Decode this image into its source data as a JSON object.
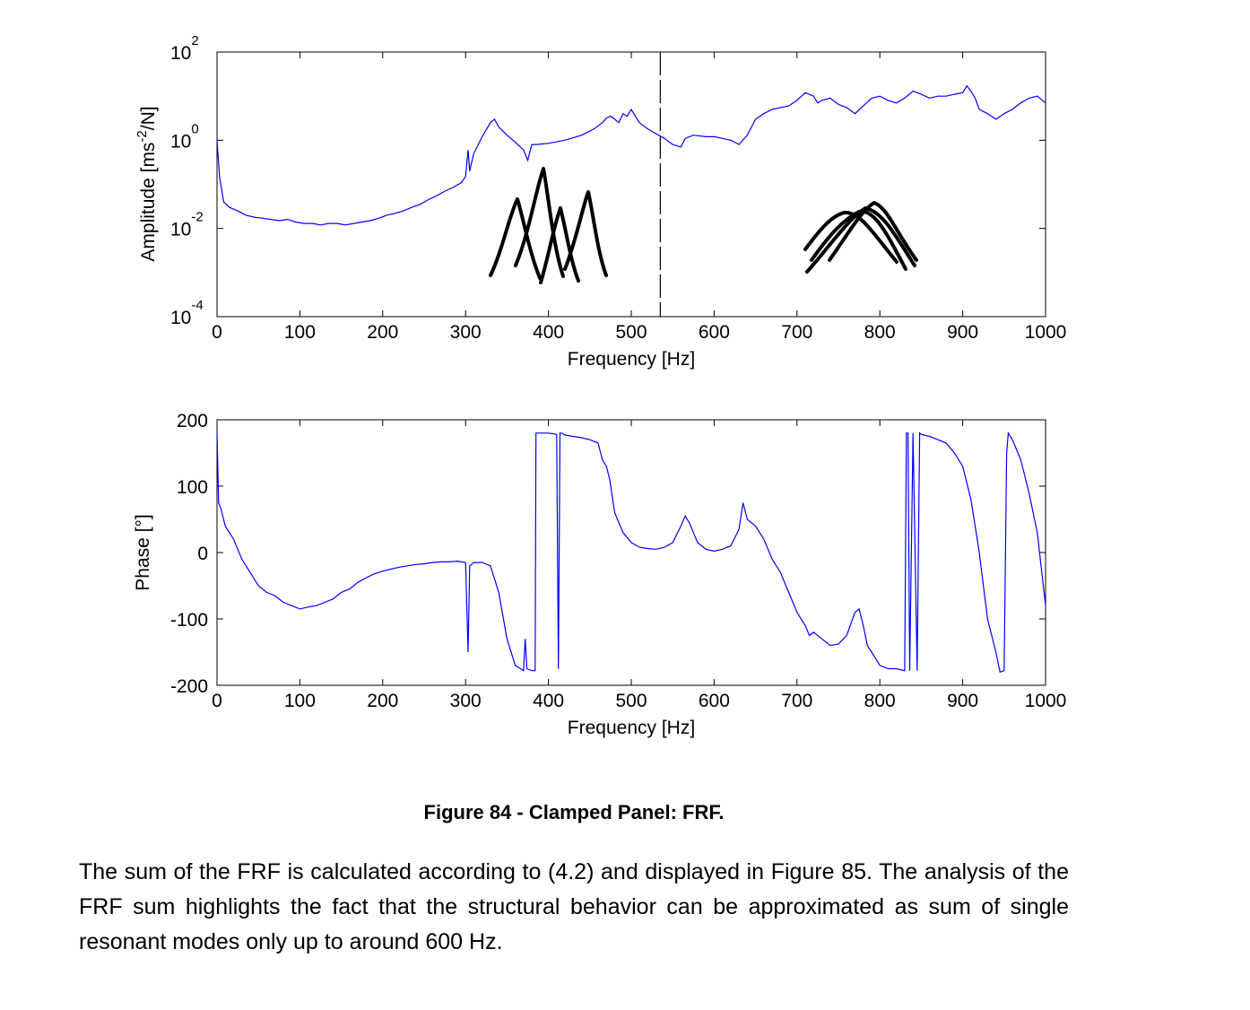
{
  "chart_data": [
    {
      "type": "line",
      "xlabel": "Frequency [Hz]",
      "ylabel": "Amplitude [ms-2/N]",
      "ylabel_parts": {
        "pre": "Amplitude [ms",
        "sup1": "-2",
        "mid": "/N]"
      },
      "y_scale": "log",
      "xlim": [
        0,
        1000
      ],
      "ylim": [
        0.0001,
        100
      ],
      "x_ticks": [
        "0",
        "100",
        "200",
        "300",
        "400",
        "500",
        "600",
        "700",
        "800",
        "900",
        "1000"
      ],
      "y_ticks": [
        {
          "value": 100,
          "base": "10",
          "exp": "2"
        },
        {
          "value": 1,
          "base": "10",
          "exp": "0"
        },
        {
          "value": 0.01,
          "base": "10",
          "exp": "-2"
        },
        {
          "value": 0.0001,
          "base": "10",
          "exp": "-4"
        }
      ],
      "grid": false,
      "line_color": "#0000ff",
      "marker_line": {
        "x": 535,
        "style": "dashed"
      },
      "series": [
        {
          "x": [
            0,
            3,
            8,
            15,
            25,
            35,
            45,
            55,
            65,
            75,
            85,
            95,
            105,
            115,
            125,
            135,
            145,
            155,
            165,
            175,
            185,
            195,
            205,
            215,
            225,
            235,
            245,
            255,
            265,
            275,
            285,
            295,
            300,
            303,
            305,
            307,
            310,
            320,
            330,
            335,
            340,
            350,
            360,
            370,
            375,
            380,
            385,
            400,
            420,
            440,
            455,
            465,
            470,
            475,
            480,
            485,
            490,
            495,
            500,
            505,
            510,
            520,
            530,
            540,
            550,
            560,
            565,
            575,
            590,
            600,
            610,
            620,
            625,
            630,
            640,
            650,
            660,
            670,
            680,
            690,
            700,
            710,
            720,
            725,
            730,
            740,
            750,
            760,
            770,
            780,
            790,
            800,
            810,
            820,
            830,
            840,
            850,
            860,
            870,
            880,
            890,
            900,
            905,
            910,
            915,
            920,
            930,
            940,
            950,
            960,
            970,
            980,
            990,
            1000
          ],
          "y": [
            1.0,
            0.15,
            0.04,
            0.03,
            0.025,
            0.02,
            0.018,
            0.017,
            0.016,
            0.015,
            0.016,
            0.014,
            0.013,
            0.013,
            0.012,
            0.013,
            0.013,
            0.012,
            0.013,
            0.014,
            0.015,
            0.017,
            0.02,
            0.022,
            0.025,
            0.03,
            0.035,
            0.045,
            0.055,
            0.07,
            0.085,
            0.11,
            0.15,
            0.6,
            0.2,
            0.3,
            0.5,
            1.2,
            2.5,
            3.0,
            2.0,
            1.3,
            0.9,
            0.6,
            0.35,
            0.8,
            0.8,
            0.85,
            1.0,
            1.3,
            1.8,
            2.5,
            3.2,
            3.5,
            3.0,
            2.5,
            4.0,
            3.5,
            5.0,
            3.5,
            2.5,
            1.8,
            1.4,
            1.1,
            0.8,
            0.7,
            1.1,
            1.3,
            1.2,
            1.2,
            1.1,
            1.0,
            0.9,
            0.8,
            1.3,
            3.0,
            4.0,
            5.0,
            5.5,
            6.0,
            8.0,
            12.0,
            10.0,
            7.0,
            8.0,
            9.0,
            6.5,
            5.5,
            4.0,
            6.0,
            9.0,
            10.0,
            8.0,
            7.0,
            9.0,
            13.0,
            11.0,
            9.0,
            10.0,
            10.0,
            11.0,
            12.0,
            17.0,
            13.0,
            9.0,
            5.0,
            4.0,
            3.0,
            4.0,
            5.0,
            7.0,
            9.0,
            10.0,
            7.0
          ]
        }
      ]
    },
    {
      "type": "line",
      "xlabel": "Frequency [Hz]",
      "ylabel": "Phase [°]",
      "xlim": [
        0,
        1000
      ],
      "ylim": [
        -200,
        200
      ],
      "x_ticks": [
        "0",
        "100",
        "200",
        "300",
        "400",
        "500",
        "600",
        "700",
        "800",
        "900",
        "1000"
      ],
      "y_ticks": [
        "200",
        "100",
        "0",
        "-100",
        "-200"
      ],
      "grid": false,
      "line_color": "#0000ff",
      "series": [
        {
          "x": [
            0,
            2,
            5,
            10,
            20,
            30,
            40,
            50,
            60,
            70,
            80,
            90,
            100,
            110,
            120,
            130,
            140,
            150,
            160,
            170,
            180,
            190,
            200,
            210,
            220,
            230,
            240,
            250,
            260,
            270,
            280,
            290,
            300,
            303,
            305,
            307,
            310,
            320,
            330,
            340,
            350,
            360,
            370,
            372,
            374,
            380,
            384,
            385,
            390,
            400,
            410,
            412,
            414,
            416,
            420,
            430,
            440,
            450,
            460,
            465,
            470,
            472,
            474,
            480,
            490,
            500,
            510,
            520,
            530,
            540,
            550,
            560,
            565,
            570,
            575,
            580,
            590,
            600,
            610,
            620,
            630,
            635,
            640,
            650,
            660,
            670,
            680,
            690,
            700,
            710,
            715,
            720,
            730,
            740,
            750,
            760,
            770,
            775,
            780,
            785,
            790,
            800,
            810,
            820,
            830,
            832,
            834,
            836,
            840,
            845,
            848,
            850,
            860,
            870,
            880,
            890,
            900,
            910,
            920,
            930,
            940,
            945,
            950,
            953,
            955,
            960,
            970,
            980,
            990,
            1000
          ],
          "y": [
            180,
            75,
            65,
            40,
            20,
            -10,
            -30,
            -50,
            -60,
            -65,
            -75,
            -80,
            -85,
            -82,
            -80,
            -75,
            -70,
            -60,
            -55,
            -45,
            -38,
            -32,
            -28,
            -25,
            -22,
            -20,
            -18,
            -17,
            -15,
            -14,
            -14,
            -13,
            -15,
            -150,
            -20,
            -18,
            -15,
            -15,
            -20,
            -60,
            -130,
            -170,
            -178,
            -130,
            -175,
            -178,
            -178,
            180,
            180,
            180,
            178,
            -175,
            180,
            180,
            177,
            175,
            173,
            170,
            165,
            140,
            130,
            120,
            110,
            60,
            30,
            15,
            8,
            6,
            5,
            8,
            15,
            40,
            55,
            45,
            30,
            15,
            5,
            2,
            5,
            10,
            35,
            75,
            50,
            40,
            20,
            -10,
            -30,
            -60,
            -90,
            -110,
            -125,
            -120,
            -130,
            -140,
            -138,
            -125,
            -90,
            -85,
            -110,
            -140,
            -150,
            -170,
            -175,
            -175,
            -178,
            180,
            180,
            -178,
            180,
            -178,
            180,
            178,
            175,
            170,
            165,
            150,
            130,
            80,
            0,
            -100,
            -150,
            -180,
            -178,
            150,
            180,
            170,
            140,
            90,
            30,
            -80
          ]
        }
      ]
    }
  ],
  "caption": "Figure 84 - Clamped Panel: FRF.",
  "paragraph": "The sum of the FRF is calculated according to (4.2) and displayed in Figure 85. The analysis of the FRF sum highlights the fact that the structural behavior can be approximated as sum of single resonant modes only up to around 600 Hz."
}
